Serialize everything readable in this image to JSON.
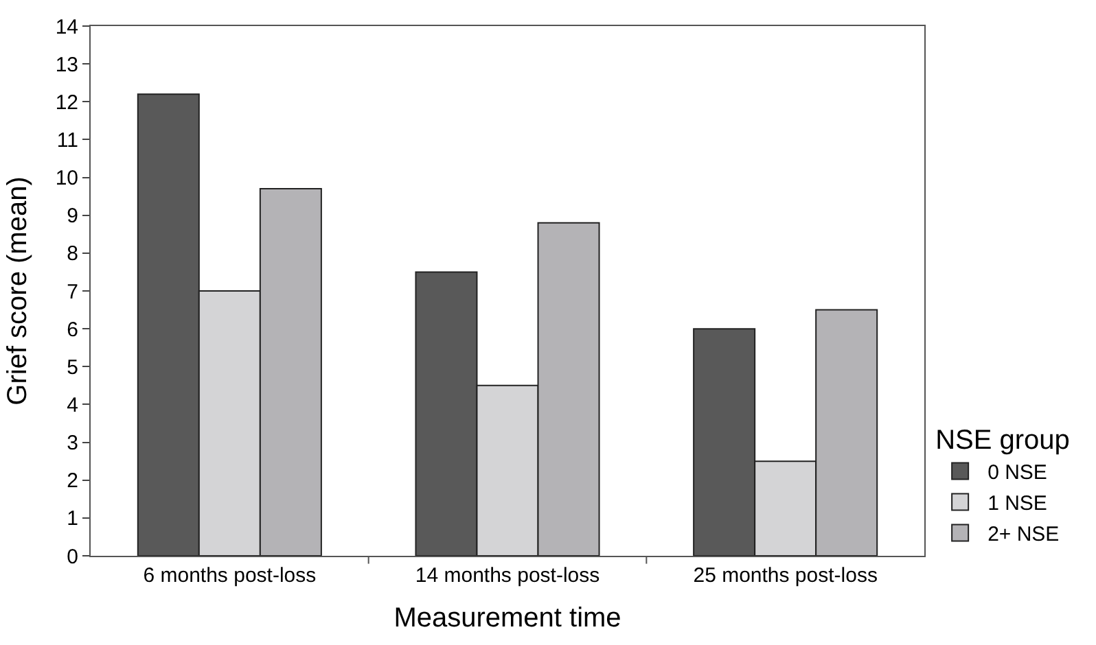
{
  "chart_data": {
    "type": "bar",
    "xlabel": "Measurement time",
    "ylabel": "Grief score (mean)",
    "legend_title": "NSE group",
    "categories": [
      "6 months post-loss",
      "14 months post-loss",
      "25 months post-loss"
    ],
    "series": [
      {
        "name": "0 NSE",
        "color": "#595959",
        "values": [
          12.2,
          7.5,
          6.0
        ]
      },
      {
        "name": "1 NSE",
        "color": "#d4d4d6",
        "values": [
          7.0,
          4.5,
          2.5
        ]
      },
      {
        "name": "2+ NSE",
        "color": "#b4b3b6",
        "values": [
          9.7,
          8.8,
          6.5
        ]
      }
    ],
    "ylim": [
      0,
      14
    ],
    "yticks": [
      0,
      1,
      2,
      3,
      4,
      5,
      6,
      7,
      8,
      9,
      10,
      11,
      12,
      13,
      14
    ],
    "legend": "bottom right"
  }
}
